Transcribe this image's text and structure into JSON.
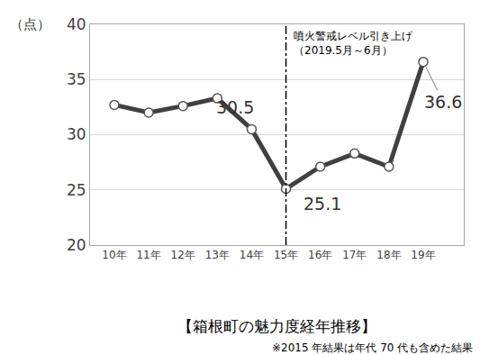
{
  "chart_data": {
    "type": "line",
    "title": "【箱根町の魅力度経年推移】",
    "note": "※2015 年結果は年代 70 代も含めた結果",
    "y_label": "（点）",
    "categories": [
      "10年",
      "11年",
      "12年",
      "13年",
      "14年",
      "15年",
      "16年",
      "17年",
      "18年",
      "19年"
    ],
    "values": [
      32.7,
      32.0,
      32.6,
      33.3,
      30.5,
      25.1,
      27.1,
      28.3,
      27.1,
      36.6
    ],
    "value_labels": [
      null,
      null,
      null,
      null,
      "30.5",
      "25.1",
      null,
      null,
      null,
      "36.6"
    ],
    "data_labels": true,
    "color": "#404040",
    "marker": "circle",
    "ylim": [
      20,
      40
    ],
    "yticks": [
      20,
      25,
      30,
      35,
      40
    ],
    "grid": true,
    "vline": {
      "category": "15年",
      "line_style": "dashdot"
    },
    "annotations": [
      {
        "category": "15年",
        "text": [
          "噴火警戒レベル引き上げ",
          "（2019.5月～6月）"
        ]
      }
    ]
  }
}
